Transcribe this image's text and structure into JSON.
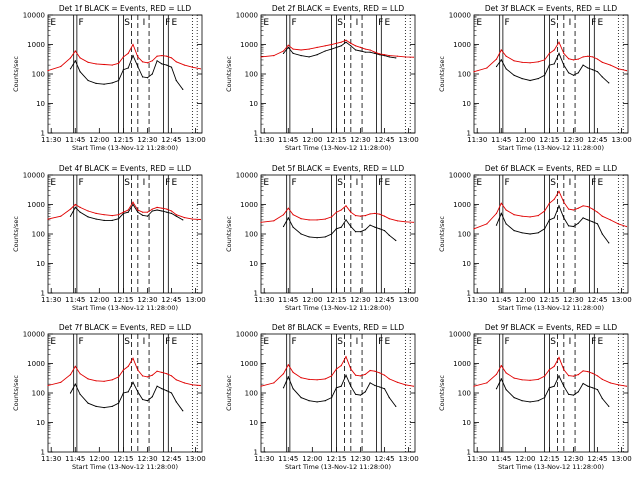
{
  "colors": {
    "events": "#000000",
    "lld": "#e00000",
    "frame": "#000000"
  },
  "common": {
    "ylabel": "Counts/sec",
    "xlabel": "Start Time (13-Nov-12 11:28:00)",
    "x_ticks": [
      "11:30",
      "11:45",
      "12:00",
      "12:15",
      "12:30",
      "12:45",
      "13:00"
    ],
    "x_tick_minutes": [
      2,
      17,
      32,
      47,
      62,
      77,
      92
    ],
    "y_ticks": [
      "1",
      "10",
      "100",
      "1000",
      "10000"
    ],
    "y_scale": "log",
    "ylim": [
      1,
      10000
    ],
    "xlim_minutes": [
      0,
      96
    ],
    "interval_labels": [
      "E",
      "F",
      "S",
      "I",
      "F",
      "E"
    ],
    "solid_lines_minutes": [
      16,
      18,
      44,
      47,
      72,
      75
    ],
    "dashed_lines_minutes": [
      52,
      56,
      63
    ],
    "dotted_lines_minutes": [
      90,
      93
    ]
  },
  "chart_data": [
    {
      "type": "line",
      "title": "Det 1f BLACK = Events, RED = LLD",
      "series": [
        {
          "name": "Events",
          "color": "#000000",
          "x": [
            14,
            17,
            20,
            25,
            30,
            35,
            40,
            44,
            47,
            50,
            53,
            56,
            59,
            62,
            65,
            68,
            71,
            74,
            77,
            80,
            84
          ],
          "values": [
            150,
            280,
            120,
            60,
            48,
            45,
            50,
            60,
            140,
            160,
            420,
            180,
            80,
            75,
            100,
            280,
            220,
            200,
            170,
            60,
            30
          ]
        },
        {
          "name": "LLD",
          "color": "#e00000",
          "x": [
            0,
            8,
            14,
            17,
            20,
            25,
            30,
            35,
            40,
            44,
            47,
            50,
            53,
            56,
            59,
            62,
            65,
            68,
            71,
            74,
            77,
            80,
            85,
            90,
            95
          ],
          "values": [
            130,
            180,
            350,
            600,
            350,
            250,
            220,
            210,
            200,
            230,
            380,
            500,
            1000,
            380,
            260,
            240,
            280,
            400,
            420,
            400,
            350,
            260,
            200,
            170,
            150
          ]
        }
      ]
    },
    {
      "type": "line",
      "title": "Det 2f BLACK = Events, RED = LLD",
      "series": [
        {
          "name": "Events",
          "color": "#000000",
          "x": [
            14,
            17,
            20,
            25,
            30,
            35,
            40,
            44,
            47,
            50,
            53,
            56,
            59,
            62,
            65,
            68,
            71,
            74,
            77,
            80,
            84
          ],
          "values": [
            500,
            800,
            500,
            420,
            380,
            450,
            600,
            700,
            800,
            900,
            1200,
            900,
            650,
            600,
            550,
            550,
            500,
            450,
            420,
            380,
            350
          ]
        },
        {
          "name": "LLD",
          "color": "#e00000",
          "x": [
            0,
            8,
            14,
            17,
            20,
            25,
            30,
            35,
            40,
            44,
            47,
            50,
            53,
            56,
            59,
            62,
            65,
            68,
            71,
            74,
            77,
            80,
            85,
            90,
            95
          ],
          "values": [
            380,
            420,
            600,
            950,
            700,
            650,
            700,
            800,
            900,
            1000,
            1100,
            1200,
            1400,
            1100,
            900,
            800,
            700,
            650,
            550,
            480,
            450,
            420,
            400,
            380,
            370
          ]
        }
      ]
    },
    {
      "type": "line",
      "title": "Det 3f BLACK = Events, RED = LLD",
      "series": [
        {
          "name": "Events",
          "color": "#000000",
          "x": [
            14,
            17,
            20,
            25,
            30,
            35,
            40,
            44,
            47,
            50,
            53,
            56,
            59,
            62,
            65,
            68,
            71,
            74,
            77,
            80,
            84
          ],
          "values": [
            180,
            300,
            150,
            90,
            70,
            60,
            70,
            90,
            200,
            220,
            500,
            200,
            110,
            90,
            110,
            200,
            160,
            140,
            120,
            80,
            50
          ]
        },
        {
          "name": "LLD",
          "color": "#e00000",
          "x": [
            0,
            8,
            14,
            17,
            20,
            25,
            30,
            35,
            40,
            44,
            47,
            50,
            53,
            56,
            59,
            62,
            65,
            68,
            71,
            74,
            77,
            80,
            85,
            90,
            95
          ],
          "values": [
            120,
            160,
            320,
            650,
            400,
            280,
            250,
            240,
            260,
            300,
            500,
            650,
            1200,
            500,
            330,
            300,
            320,
            380,
            400,
            380,
            320,
            250,
            200,
            150,
            130
          ]
        }
      ]
    },
    {
      "type": "line",
      "title": "Det 4f BLACK = Events, RED = LLD",
      "series": [
        {
          "name": "Events",
          "color": "#000000",
          "x": [
            14,
            17,
            20,
            25,
            30,
            35,
            40,
            44,
            47,
            50,
            53,
            56,
            59,
            62,
            65,
            68,
            71,
            74,
            77,
            80,
            84
          ],
          "values": [
            400,
            800,
            550,
            380,
            320,
            290,
            290,
            330,
            500,
            550,
            1000,
            550,
            430,
            400,
            600,
            650,
            600,
            550,
            500,
            400,
            300
          ]
        },
        {
          "name": "LLD",
          "color": "#e00000",
          "x": [
            0,
            8,
            14,
            17,
            20,
            25,
            30,
            35,
            40,
            44,
            47,
            50,
            53,
            56,
            59,
            62,
            65,
            68,
            71,
            74,
            77,
            80,
            85,
            90,
            95
          ],
          "values": [
            320,
            400,
            700,
            1000,
            800,
            600,
            500,
            450,
            420,
            450,
            550,
            650,
            1200,
            650,
            550,
            550,
            700,
            800,
            750,
            700,
            600,
            450,
            360,
            320,
            310
          ]
        }
      ]
    },
    {
      "type": "line",
      "title": "Det 5f BLACK = Events, RED = LLD",
      "series": [
        {
          "name": "Events",
          "color": "#000000",
          "x": [
            14,
            17,
            20,
            25,
            30,
            35,
            40,
            44,
            47,
            50,
            53,
            56,
            59,
            62,
            65,
            68,
            71,
            74,
            77,
            80,
            84
          ],
          "values": [
            180,
            350,
            170,
            100,
            80,
            75,
            80,
            100,
            150,
            170,
            300,
            180,
            120,
            120,
            140,
            200,
            170,
            150,
            130,
            90,
            60
          ]
        },
        {
          "name": "LLD",
          "color": "#e00000",
          "x": [
            0,
            8,
            14,
            17,
            20,
            25,
            30,
            35,
            40,
            44,
            47,
            50,
            53,
            56,
            59,
            62,
            65,
            68,
            71,
            74,
            77,
            80,
            85,
            90,
            95
          ],
          "values": [
            250,
            280,
            450,
            750,
            450,
            330,
            300,
            300,
            320,
            380,
            550,
            650,
            900,
            550,
            420,
            400,
            420,
            480,
            500,
            470,
            400,
            330,
            280,
            260,
            250
          ]
        }
      ]
    },
    {
      "type": "line",
      "title": "Det 6f BLACK = Events, RED = LLD",
      "series": [
        {
          "name": "Events",
          "color": "#000000",
          "x": [
            14,
            17,
            20,
            25,
            30,
            35,
            40,
            44,
            47,
            50,
            53,
            56,
            59,
            62,
            65,
            68,
            71,
            74,
            77,
            80,
            84
          ],
          "values": [
            200,
            500,
            220,
            130,
            110,
            100,
            110,
            150,
            300,
            350,
            900,
            350,
            190,
            180,
            230,
            350,
            300,
            260,
            220,
            100,
            50
          ]
        },
        {
          "name": "LLD",
          "color": "#e00000",
          "x": [
            0,
            8,
            14,
            17,
            20,
            25,
            30,
            35,
            40,
            44,
            47,
            50,
            53,
            56,
            59,
            62,
            65,
            68,
            71,
            74,
            77,
            80,
            85,
            90,
            95
          ],
          "values": [
            150,
            220,
            500,
            1100,
            650,
            450,
            400,
            380,
            420,
            600,
            1100,
            1500,
            2800,
            1200,
            700,
            650,
            750,
            900,
            850,
            700,
            550,
            400,
            300,
            220,
            180
          ]
        }
      ]
    },
    {
      "type": "line",
      "title": "Det 7f BLACK = Events, RED = LLD",
      "series": [
        {
          "name": "Events",
          "color": "#000000",
          "x": [
            14,
            17,
            20,
            25,
            30,
            35,
            40,
            44,
            47,
            50,
            53,
            56,
            59,
            62,
            65,
            68,
            71,
            74,
            77,
            80,
            84
          ],
          "values": [
            100,
            200,
            90,
            45,
            35,
            32,
            35,
            45,
            100,
            110,
            230,
            110,
            60,
            55,
            75,
            170,
            140,
            120,
            100,
            50,
            25
          ]
        },
        {
          "name": "LLD",
          "color": "#e00000",
          "x": [
            0,
            8,
            14,
            17,
            20,
            25,
            30,
            35,
            40,
            44,
            47,
            50,
            53,
            56,
            59,
            62,
            65,
            68,
            71,
            74,
            77,
            80,
            85,
            90,
            95
          ],
          "values": [
            180,
            230,
            420,
            800,
            450,
            300,
            260,
            250,
            280,
            350,
            600,
            800,
            1500,
            600,
            380,
            350,
            400,
            550,
            500,
            450,
            380,
            280,
            220,
            190,
            180
          ]
        }
      ]
    },
    {
      "type": "line",
      "title": "Det 8f BLACK = Events, RED = LLD",
      "series": [
        {
          "name": "Events",
          "color": "#000000",
          "x": [
            14,
            17,
            20,
            25,
            30,
            35,
            40,
            44,
            47,
            50,
            53,
            56,
            59,
            62,
            65,
            68,
            71,
            74,
            77,
            80,
            84
          ],
          "values": [
            150,
            350,
            140,
            70,
            55,
            50,
            55,
            70,
            150,
            170,
            400,
            170,
            90,
            85,
            110,
            220,
            180,
            160,
            140,
            70,
            35
          ]
        },
        {
          "name": "LLD",
          "color": "#e00000",
          "x": [
            0,
            8,
            14,
            17,
            20,
            25,
            30,
            35,
            40,
            44,
            47,
            50,
            53,
            56,
            59,
            62,
            65,
            68,
            71,
            74,
            77,
            80,
            85,
            90,
            95
          ],
          "values": [
            170,
            220,
            450,
            900,
            500,
            330,
            290,
            280,
            300,
            380,
            650,
            850,
            1700,
            650,
            400,
            380,
            430,
            580,
            550,
            480,
            400,
            300,
            230,
            190,
            170
          ]
        }
      ]
    },
    {
      "type": "line",
      "title": "Det 9f BLACK = Events, RED = LLD",
      "series": [
        {
          "name": "Events",
          "color": "#000000",
          "x": [
            14,
            17,
            20,
            25,
            30,
            35,
            40,
            44,
            47,
            50,
            53,
            56,
            59,
            62,
            65,
            68,
            71,
            74,
            77,
            80,
            84
          ],
          "values": [
            140,
            300,
            130,
            70,
            55,
            50,
            55,
            70,
            150,
            170,
            380,
            170,
            90,
            85,
            110,
            210,
            170,
            150,
            130,
            65,
            35
          ]
        },
        {
          "name": "LLD",
          "color": "#e00000",
          "x": [
            0,
            8,
            14,
            17,
            20,
            25,
            30,
            35,
            40,
            44,
            47,
            50,
            53,
            56,
            59,
            62,
            65,
            68,
            71,
            74,
            77,
            80,
            85,
            90,
            95
          ],
          "values": [
            170,
            220,
            430,
            850,
            480,
            320,
            280,
            270,
            290,
            370,
            620,
            800,
            1600,
            620,
            390,
            370,
            420,
            560,
            530,
            460,
            380,
            290,
            220,
            190,
            170
          ]
        }
      ]
    }
  ]
}
